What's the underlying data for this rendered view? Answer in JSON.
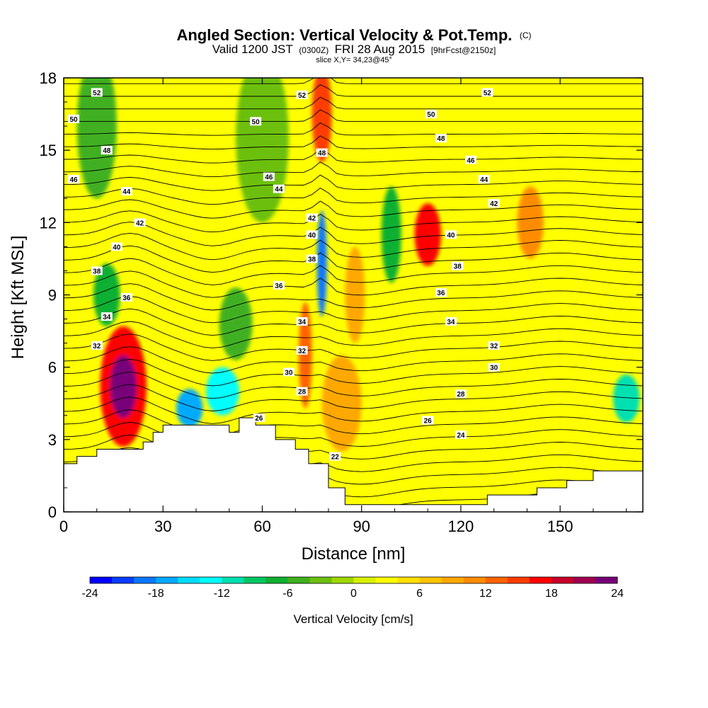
{
  "chart_data": {
    "type": "heatmap",
    "title": "Angled Section: Vertical Velocity & Pot.Temp.",
    "title_unit": "(C)",
    "subtitle_parts": {
      "a": "Valid 1200 JST",
      "b": "(0300Z)",
      "c": "FRI 28 Aug 2015",
      "d": "[9hrFcst@2150z]"
    },
    "slice": "slice X,Y= 34,23@45°",
    "xlabel": "Distance [nm]",
    "ylabel": "Height [Kft MSL]",
    "xlim": [
      0,
      175
    ],
    "ylim": [
      0,
      18
    ],
    "x_ticks": [
      "0",
      "30",
      "60",
      "90",
      "120",
      "150"
    ],
    "y_ticks": [
      "0",
      "3",
      "6",
      "9",
      "12",
      "15",
      "18"
    ],
    "colorbar": {
      "title": "Vertical Velocity [cm/s]",
      "min": -24,
      "max": 24,
      "step": 2,
      "tick_labels": [
        "-24",
        "-18",
        "-12",
        "-6",
        "0",
        "6",
        "12",
        "18",
        "24"
      ],
      "colors": [
        "#0000ff",
        "#0a3cff",
        "#0a78ff",
        "#00aaff",
        "#00dcff",
        "#00ffff",
        "#00e0b0",
        "#00c864",
        "#10b030",
        "#40b020",
        "#6cc010",
        "#a0d800",
        "#d8f000",
        "#ffff00",
        "#ffe000",
        "#ffc400",
        "#ffa800",
        "#ff8c00",
        "#ff6400",
        "#ff3c00",
        "#ff0000",
        "#c80028",
        "#a00050",
        "#780078"
      ]
    },
    "terrain": [
      [
        0,
        2.0
      ],
      [
        4,
        2.0
      ],
      [
        4,
        2.3
      ],
      [
        10,
        2.3
      ],
      [
        10,
        2.6
      ],
      [
        24,
        2.6
      ],
      [
        24,
        2.9
      ],
      [
        27,
        2.9
      ],
      [
        27,
        3.3
      ],
      [
        30,
        3.3
      ],
      [
        30,
        3.6
      ],
      [
        50,
        3.6
      ],
      [
        50,
        3.3
      ],
      [
        53,
        3.3
      ],
      [
        53,
        3.9
      ],
      [
        58,
        3.9
      ],
      [
        58,
        3.6
      ],
      [
        64,
        3.6
      ],
      [
        64,
        3.0
      ],
      [
        70,
        3.0
      ],
      [
        70,
        2.6
      ],
      [
        74,
        2.6
      ],
      [
        74,
        2.0
      ],
      [
        80,
        2.0
      ],
      [
        80,
        1.0
      ],
      [
        85,
        1.0
      ],
      [
        85,
        0.3
      ],
      [
        128,
        0.3
      ],
      [
        128,
        0.7
      ],
      [
        143,
        0.7
      ],
      [
        143,
        1.0
      ],
      [
        152,
        1.0
      ],
      [
        152,
        1.3
      ],
      [
        160,
        1.3
      ],
      [
        160,
        1.7
      ],
      [
        175,
        1.7
      ]
    ],
    "vertical_velocity_features": [
      {
        "x": 18,
        "y": 5.2,
        "value": 22,
        "rx": 4,
        "ry": 1.3
      },
      {
        "x": 18,
        "y": 5.2,
        "value": 16,
        "rx": 7,
        "ry": 2.5
      },
      {
        "x": 78,
        "y": 16.5,
        "value": 14,
        "rx": 3,
        "ry": 2.0
      },
      {
        "x": 110,
        "y": 11.5,
        "value": 16,
        "rx": 4,
        "ry": 1.3
      },
      {
        "x": 141,
        "y": 12.0,
        "value": 10,
        "rx": 4,
        "ry": 1.5
      },
      {
        "x": 84,
        "y": 4.5,
        "value": 8,
        "rx": 6,
        "ry": 2.0
      },
      {
        "x": 73,
        "y": 6.5,
        "value": 12,
        "rx": 2,
        "ry": 2.2
      },
      {
        "x": 78,
        "y": 10.3,
        "value": -20,
        "rx": 1.5,
        "ry": 2.2
      },
      {
        "x": 38,
        "y": 4.3,
        "value": -18,
        "rx": 4,
        "ry": 0.8
      },
      {
        "x": 48,
        "y": 5.0,
        "value": -14,
        "rx": 5,
        "ry": 1.0
      },
      {
        "x": 99,
        "y": 11.5,
        "value": -8,
        "rx": 3,
        "ry": 2.0
      },
      {
        "x": 13,
        "y": 9.0,
        "value": -8,
        "rx": 4,
        "ry": 1.3
      },
      {
        "x": 170,
        "y": 4.7,
        "value": -12,
        "rx": 4,
        "ry": 1.0
      },
      {
        "x": 52,
        "y": 7.8,
        "value": -6,
        "rx": 5,
        "ry": 1.5
      },
      {
        "x": 88,
        "y": 9.0,
        "value": 8,
        "rx": 3,
        "ry": 2.0
      },
      {
        "x": 60,
        "y": 15.5,
        "value": -4,
        "rx": 8,
        "ry": 3.5
      },
      {
        "x": 10,
        "y": 16.0,
        "value": -5,
        "rx": 6,
        "ry": 3.0
      }
    ],
    "isotherm_levels": [
      20,
      21,
      22,
      23,
      24,
      25,
      26,
      27,
      28,
      29,
      30,
      31,
      32,
      33,
      34,
      35,
      36,
      37,
      38,
      39,
      40,
      41,
      42,
      43,
      44,
      45,
      46,
      47,
      48,
      49,
      50,
      51,
      52,
      53
    ],
    "isotherm_labels": [
      {
        "value": "52",
        "x": 10,
        "y": 17.4
      },
      {
        "value": "52",
        "x": 72,
        "y": 17.3
      },
      {
        "value": "52",
        "x": 128,
        "y": 17.4
      },
      {
        "value": "50",
        "x": 3,
        "y": 16.3
      },
      {
        "value": "50",
        "x": 58,
        "y": 16.2
      },
      {
        "value": "50",
        "x": 111,
        "y": 16.5
      },
      {
        "value": "48",
        "x": 13,
        "y": 15.0
      },
      {
        "value": "48",
        "x": 78,
        "y": 14.9
      },
      {
        "value": "48",
        "x": 114,
        "y": 15.5
      },
      {
        "value": "46",
        "x": 3,
        "y": 13.8
      },
      {
        "value": "46",
        "x": 62,
        "y": 13.9
      },
      {
        "value": "46",
        "x": 123,
        "y": 14.6
      },
      {
        "value": "44",
        "x": 19,
        "y": 13.3
      },
      {
        "value": "44",
        "x": 65,
        "y": 13.4
      },
      {
        "value": "44",
        "x": 127,
        "y": 13.8
      },
      {
        "value": "42",
        "x": 23,
        "y": 12.0
      },
      {
        "value": "42",
        "x": 75,
        "y": 12.2
      },
      {
        "value": "42",
        "x": 130,
        "y": 12.8
      },
      {
        "value": "40",
        "x": 16,
        "y": 11.0
      },
      {
        "value": "40",
        "x": 75,
        "y": 11.5
      },
      {
        "value": "40",
        "x": 117,
        "y": 11.5
      },
      {
        "value": "38",
        "x": 10,
        "y": 10.0
      },
      {
        "value": "38",
        "x": 75,
        "y": 10.5
      },
      {
        "value": "38",
        "x": 119,
        "y": 10.2
      },
      {
        "value": "36",
        "x": 19,
        "y": 8.9
      },
      {
        "value": "36",
        "x": 65,
        "y": 9.4
      },
      {
        "value": "36",
        "x": 114,
        "y": 9.1
      },
      {
        "value": "34",
        "x": 13,
        "y": 8.1
      },
      {
        "value": "34",
        "x": 72,
        "y": 7.9
      },
      {
        "value": "34",
        "x": 117,
        "y": 7.9
      },
      {
        "value": "32",
        "x": 10,
        "y": 6.9
      },
      {
        "value": "32",
        "x": 72,
        "y": 6.7
      },
      {
        "value": "32",
        "x": 130,
        "y": 6.9
      },
      {
        "value": "30",
        "x": 68,
        "y": 5.8
      },
      {
        "value": "30",
        "x": 130,
        "y": 6.0
      },
      {
        "value": "28",
        "x": 72,
        "y": 5.0
      },
      {
        "value": "28",
        "x": 120,
        "y": 4.9
      },
      {
        "value": "26",
        "x": 59,
        "y": 3.9
      },
      {
        "value": "26",
        "x": 110,
        "y": 3.8
      },
      {
        "value": "24",
        "x": 120,
        "y": 3.2
      },
      {
        "value": "22",
        "x": 82,
        "y": 2.3
      }
    ]
  }
}
